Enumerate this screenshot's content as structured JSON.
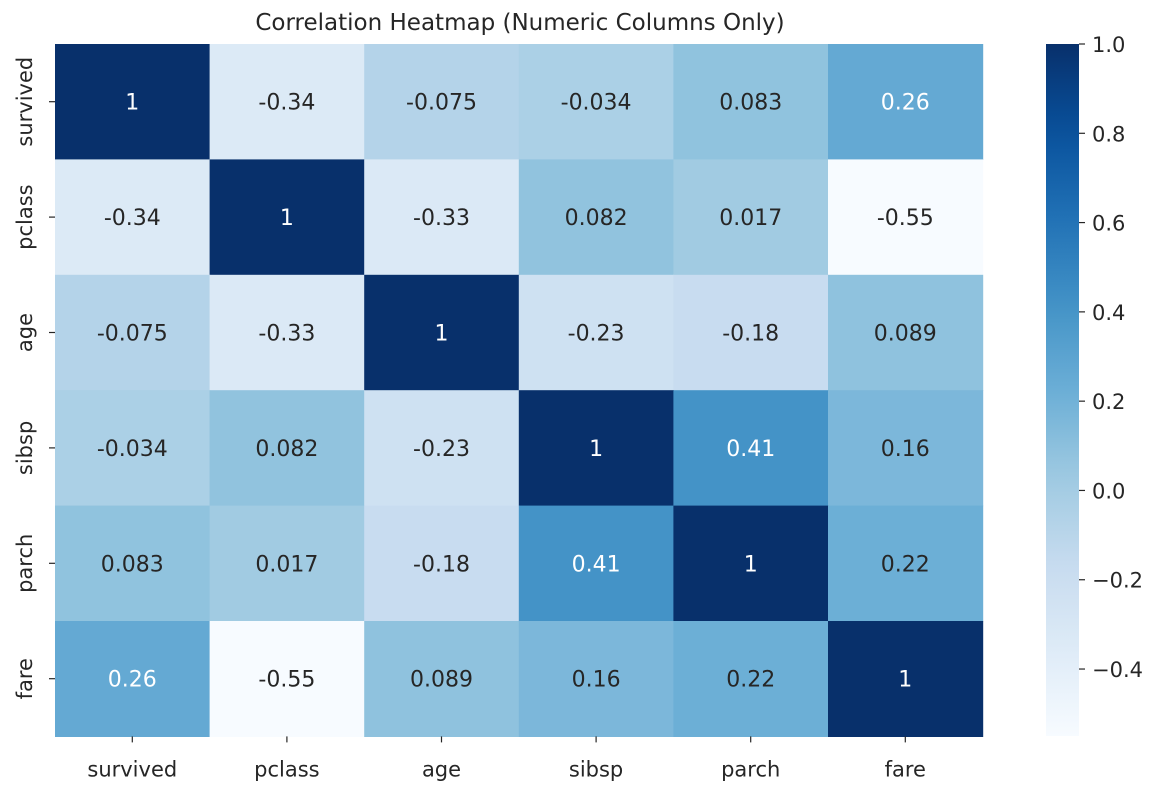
{
  "chart_data": {
    "type": "heatmap",
    "title": "Correlation Heatmap (Numeric Columns Only)",
    "xlabel": "",
    "ylabel": "",
    "x_labels": [
      "survived",
      "pclass",
      "age",
      "sibsp",
      "parch",
      "fare"
    ],
    "y_labels": [
      "survived",
      "pclass",
      "age",
      "sibsp",
      "parch",
      "fare"
    ],
    "values": [
      [
        1,
        -0.34,
        -0.075,
        -0.034,
        0.083,
        0.26
      ],
      [
        -0.34,
        1,
        -0.33,
        0.082,
        0.017,
        -0.55
      ],
      [
        -0.075,
        -0.33,
        1,
        -0.23,
        -0.18,
        0.089
      ],
      [
        -0.034,
        0.082,
        -0.23,
        1,
        0.41,
        0.16
      ],
      [
        0.083,
        0.017,
        -0.18,
        0.41,
        1,
        0.22
      ],
      [
        0.26,
        -0.55,
        0.089,
        0.16,
        0.22,
        1
      ]
    ],
    "annotations": [
      [
        "1",
        "-0.34",
        "-0.075",
        "-0.034",
        "0.083",
        "0.26"
      ],
      [
        "-0.34",
        "1",
        "-0.33",
        "0.082",
        "0.017",
        "-0.55"
      ],
      [
        "-0.075",
        "-0.33",
        "1",
        "-0.23",
        "-0.18",
        "0.089"
      ],
      [
        "-0.034",
        "0.082",
        "-0.23",
        "1",
        "0.41",
        "0.16"
      ],
      [
        "0.083",
        "0.017",
        "-0.18",
        "0.41",
        "1",
        "0.22"
      ],
      [
        "0.26",
        "-0.55",
        "0.089",
        "0.16",
        "0.22",
        "1"
      ]
    ],
    "colormap": "Blues",
    "color_range": [
      -0.55,
      1.0
    ],
    "colorbar": {
      "ticks": [
        1.0,
        0.8,
        0.6,
        0.4,
        0.2,
        0.0,
        -0.2,
        -0.4
      ],
      "tick_labels": [
        "1.0",
        "0.8",
        "0.6",
        "0.4",
        "0.2",
        "0.0",
        "−0.2",
        "−0.4"
      ]
    },
    "colors": {
      "text_dark": "#262626",
      "text_light": "#ffffff",
      "tick": "#262626"
    },
    "grid": false
  }
}
